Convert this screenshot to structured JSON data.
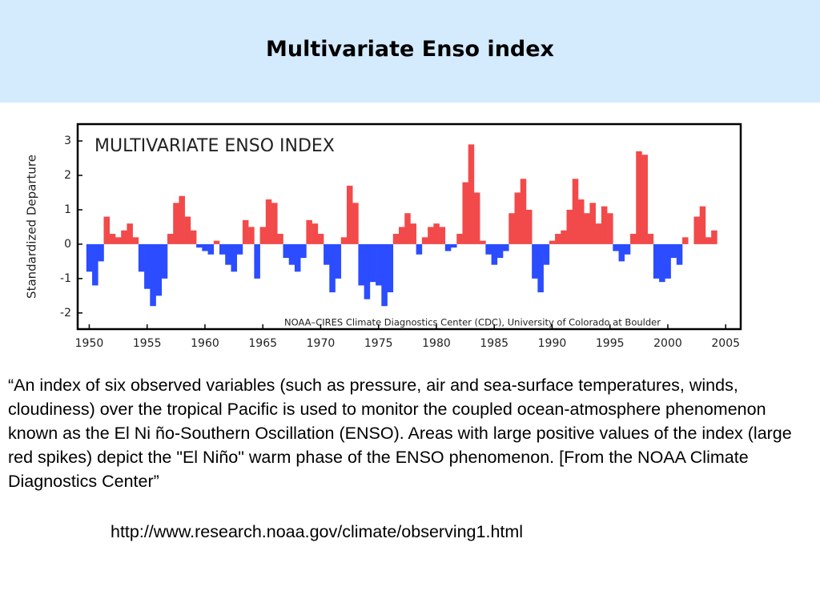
{
  "header": {
    "title": "Multivariate Enso index"
  },
  "chart_data": {
    "type": "bar",
    "title": "MULTIVARIATE ENSO INDEX",
    "y_label": "Standardized Departure",
    "annotation": "NOAA–CIRES Climate Diagnostics Center (CDC), University of Colorado at Boulder",
    "x": [
      1950,
      1950.5,
      1951,
      1951.5,
      1952,
      1952.5,
      1953,
      1953.5,
      1954,
      1954.5,
      1955,
      1955.5,
      1956,
      1956.5,
      1957,
      1957.5,
      1958,
      1958.5,
      1959,
      1959.5,
      1960,
      1960.5,
      1961,
      1961.5,
      1962,
      1962.5,
      1963,
      1963.5,
      1964,
      1964.5,
      1965,
      1965.5,
      1966,
      1966.5,
      1967,
      1967.5,
      1968,
      1968.5,
      1969,
      1969.5,
      1970,
      1970.5,
      1971,
      1971.5,
      1972,
      1972.5,
      1973,
      1973.5,
      1974,
      1974.5,
      1975,
      1975.5,
      1976,
      1976.5,
      1977,
      1977.5,
      1978,
      1978.5,
      1979,
      1979.5,
      1980,
      1980.5,
      1981,
      1981.5,
      1982,
      1982.5,
      1983,
      1983.5,
      1984,
      1984.5,
      1985,
      1985.5,
      1986,
      1986.5,
      1987,
      1987.5,
      1988,
      1988.5,
      1989,
      1989.5,
      1990,
      1990.5,
      1991,
      1991.5,
      1992,
      1992.5,
      1993,
      1993.5,
      1994,
      1994.5,
      1995,
      1995.5,
      1996,
      1996.5,
      1997,
      1997.5,
      1998,
      1998.5,
      1999,
      1999.5,
      2000,
      2000.5,
      2001,
      2001.5,
      2002,
      2002.5,
      2003,
      2003.5,
      2004
    ],
    "values": [
      -0.8,
      -1.2,
      -0.5,
      0.8,
      0.3,
      0.2,
      0.4,
      0.6,
      0.2,
      -0.8,
      -1.3,
      -1.8,
      -1.5,
      -1.0,
      0.3,
      1.2,
      1.4,
      0.8,
      0.4,
      -0.1,
      -0.2,
      -0.3,
      0.1,
      -0.3,
      -0.6,
      -0.8,
      -0.3,
      0.7,
      0.5,
      -1.0,
      0.5,
      1.3,
      1.2,
      0.3,
      -0.4,
      -0.6,
      -0.8,
      -0.4,
      0.7,
      0.6,
      0.3,
      -0.6,
      -1.4,
      -1.0,
      0.2,
      1.7,
      1.2,
      -1.2,
      -1.6,
      -1.1,
      -1.2,
      -1.8,
      -1.4,
      0.3,
      0.5,
      0.9,
      0.6,
      -0.3,
      0.2,
      0.5,
      0.6,
      0.5,
      -0.2,
      -0.1,
      0.3,
      1.8,
      2.9,
      1.5,
      0.1,
      -0.3,
      -0.6,
      -0.4,
      -0.2,
      0.9,
      1.5,
      1.9,
      1.0,
      -1.0,
      -1.4,
      -0.6,
      0.1,
      0.3,
      0.4,
      1.0,
      1.9,
      1.3,
      0.9,
      1.2,
      0.6,
      1.1,
      0.9,
      -0.2,
      -0.5,
      -0.3,
      0.3,
      2.7,
      2.6,
      0.3,
      -1.0,
      -1.1,
      -1.0,
      -0.4,
      -0.6,
      0.2,
      0.0,
      0.8,
      1.1,
      0.2,
      0.4
    ],
    "positive_color": "#f24a4a",
    "negative_color": "#2b4cff",
    "xlim": [
      1949,
      2006.3
    ],
    "ylim": [
      -2.47,
      3.49
    ],
    "xticks": [
      1950,
      1955,
      1960,
      1965,
      1970,
      1975,
      1980,
      1985,
      1990,
      1995,
      2000,
      2005
    ],
    "yticks": [
      -2,
      -1,
      0,
      1,
      2,
      3
    ]
  },
  "body": {
    "quote": "“An index of six observed variables (such as pressure, air and sea-surface temperatures, winds, cloudiness) over the tropical Pacific is used to monitor the coupled ocean-atmosphere phenomenon known as the El Ni ño-Southern Oscillation (ENSO). Areas with large positive values of the index (large red spikes) depict the \"El Niño\" warm phase of the ENSO phenomenon. [From the NOAA Climate Diagnostics Center”",
    "url": "http://www.research.noaa.gov/climate/observing1.html"
  }
}
